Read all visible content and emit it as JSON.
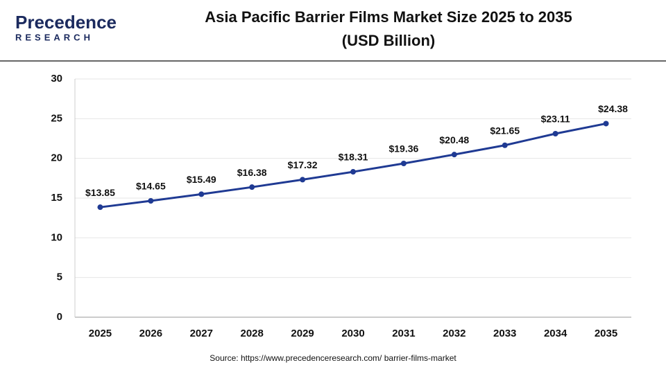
{
  "logo": {
    "name": "Precedence",
    "tagline": "RESEARCH"
  },
  "chart_data": {
    "type": "line",
    "title": "Asia Pacific Barrier Films Market Size 2025 to 2035",
    "subtitle": "(USD Billion)",
    "categories": [
      "2025",
      "2026",
      "2027",
      "2028",
      "2029",
      "2030",
      "2031",
      "2032",
      "2033",
      "2034",
      "2035"
    ],
    "series": [
      {
        "name": "Market Size",
        "color": "#1f3a93",
        "values": [
          13.85,
          14.65,
          15.49,
          16.38,
          17.32,
          18.31,
          19.36,
          20.48,
          21.65,
          23.11,
          24.38
        ],
        "value_labels": [
          "$13.85",
          "$14.65",
          "$15.49",
          "$16.38",
          "$17.32",
          "$18.31",
          "$19.36",
          "$20.48",
          "$21.65",
          "$23.11",
          "$24.38"
        ]
      }
    ],
    "ylim": [
      0,
      30
    ],
    "yticks": [
      0,
      5,
      10,
      15,
      20,
      25,
      30
    ],
    "grid": true,
    "source": "Source: https://www.precedenceresearch.com/ barrier-films-market"
  }
}
